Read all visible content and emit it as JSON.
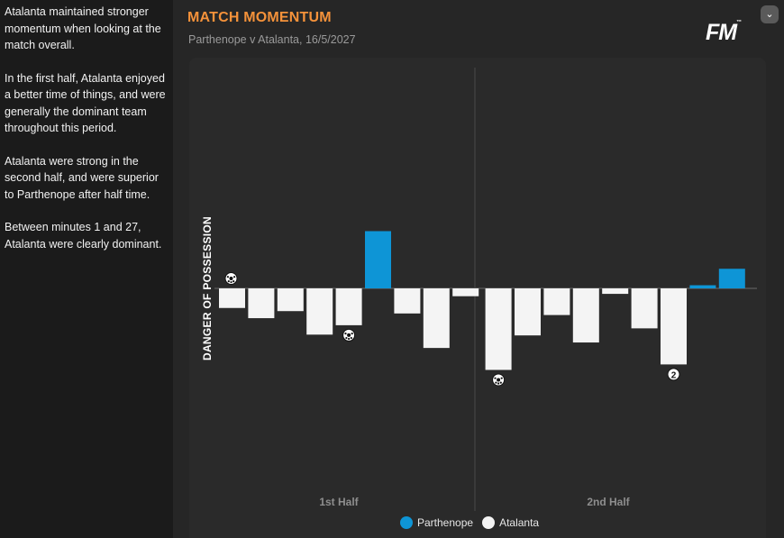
{
  "sidebar": {
    "paragraphs": [
      "Atalanta maintained stronger momentum when looking at the match overall.",
      "In the first half, Atalanta enjoyed a better time of things, and were generally the dominant team throughout this period.",
      "Atalanta were strong in the second half, and were superior to Parthenope after half time.",
      "Between minutes 1 and 27, Atalanta were clearly dominant."
    ]
  },
  "header": {
    "title": "MATCH MOMENTUM",
    "subtitle": "Parthenope v Atalanta, 16/5/2027",
    "logo": "FM"
  },
  "colors": {
    "accent": "#f5923a",
    "parthenope": "#0e95d6",
    "atalanta": "#f4f4f4"
  },
  "chart_data": {
    "type": "bar",
    "title": "MATCH MOMENTUM",
    "ylabel": "DANGER OF POSSESSION",
    "xlabels": [
      "1st Half",
      "2nd Half"
    ],
    "legend": [
      "Parthenope",
      "Atalanta"
    ],
    "ylim": [
      -1.0,
      1.0
    ],
    "values": [
      -0.25,
      -0.38,
      -0.29,
      -0.59,
      -0.47,
      0.73,
      -0.32,
      -0.76,
      -0.1,
      -1.04,
      -0.6,
      -0.34,
      -0.69,
      -0.07,
      -0.51,
      -0.97,
      0.04,
      0.25
    ],
    "goals": [
      {
        "bar": 0,
        "side": "above",
        "label": ""
      },
      {
        "bar": 4,
        "side": "below",
        "label": ""
      },
      {
        "bar": 9,
        "side": "below",
        "label": ""
      },
      {
        "bar": 15,
        "side": "below",
        "label": "2"
      }
    ],
    "halftime_after_bar": 8
  }
}
